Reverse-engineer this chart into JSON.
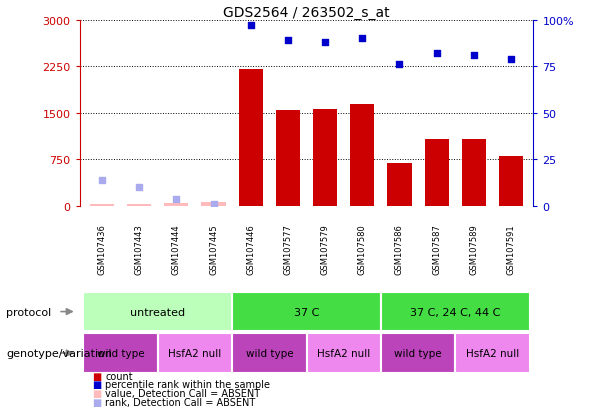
{
  "title": "GDS2564 / 263502_s_at",
  "samples": [
    "GSM107436",
    "GSM107443",
    "GSM107444",
    "GSM107445",
    "GSM107446",
    "GSM107577",
    "GSM107579",
    "GSM107580",
    "GSM107586",
    "GSM107587",
    "GSM107589",
    "GSM107591"
  ],
  "count_values": [
    28,
    35,
    55,
    65,
    2200,
    1540,
    1570,
    1640,
    690,
    1080,
    1080,
    810
  ],
  "count_absent": [
    true,
    true,
    true,
    true,
    false,
    false,
    false,
    false,
    false,
    false,
    false,
    false
  ],
  "percentile_values": [
    14,
    10,
    4,
    1,
    97,
    89,
    88,
    90,
    76,
    82,
    81,
    79
  ],
  "percentile_absent": [
    true,
    true,
    true,
    true,
    false,
    false,
    false,
    false,
    false,
    false,
    false,
    false
  ],
  "ylim_left": [
    0,
    3000
  ],
  "ylim_right": [
    0,
    100
  ],
  "yticks_left": [
    0,
    750,
    1500,
    2250,
    3000
  ],
  "yticks_right": [
    0,
    25,
    50,
    75,
    100
  ],
  "ytick_labels_left": [
    "0",
    "750",
    "1500",
    "2250",
    "3000"
  ],
  "ytick_labels_right": [
    "0",
    "25",
    "50",
    "75",
    "100%"
  ],
  "color_count_normal": "#cc0000",
  "color_count_absent": "#ffbbbb",
  "color_percentile_normal": "#0000cc",
  "color_percentile_absent": "#aaaaee",
  "protocol_groups": [
    {
      "label": "untreated",
      "start": 0,
      "end": 3,
      "color": "#bbffbb"
    },
    {
      "label": "37 C",
      "start": 4,
      "end": 7,
      "color": "#44dd44"
    },
    {
      "label": "37 C, 24 C, 44 C",
      "start": 8,
      "end": 11,
      "color": "#44dd44"
    }
  ],
  "genotype_groups": [
    {
      "label": "wild type",
      "start": 0,
      "end": 1,
      "color": "#bb44bb"
    },
    {
      "label": "HsfA2 null",
      "start": 2,
      "end": 3,
      "color": "#ee88ee"
    },
    {
      "label": "wild type",
      "start": 4,
      "end": 5,
      "color": "#bb44bb"
    },
    {
      "label": "HsfA2 null",
      "start": 6,
      "end": 7,
      "color": "#ee88ee"
    },
    {
      "label": "wild type",
      "start": 8,
      "end": 9,
      "color": "#bb44bb"
    },
    {
      "label": "HsfA2 null",
      "start": 10,
      "end": 11,
      "color": "#ee88ee"
    }
  ],
  "protocol_label": "protocol",
  "genotype_label": "genotype/variation",
  "legend_items": [
    {
      "label": "count",
      "color": "#cc0000"
    },
    {
      "label": "percentile rank within the sample",
      "color": "#0000cc"
    },
    {
      "label": "value, Detection Call = ABSENT",
      "color": "#ffbbbb"
    },
    {
      "label": "rank, Detection Call = ABSENT",
      "color": "#aaaaee"
    }
  ],
  "background_color": "#ffffff",
  "grid_color": "#000000",
  "sample_bg_color": "#cccccc",
  "sample_sep_color": "#ffffff"
}
